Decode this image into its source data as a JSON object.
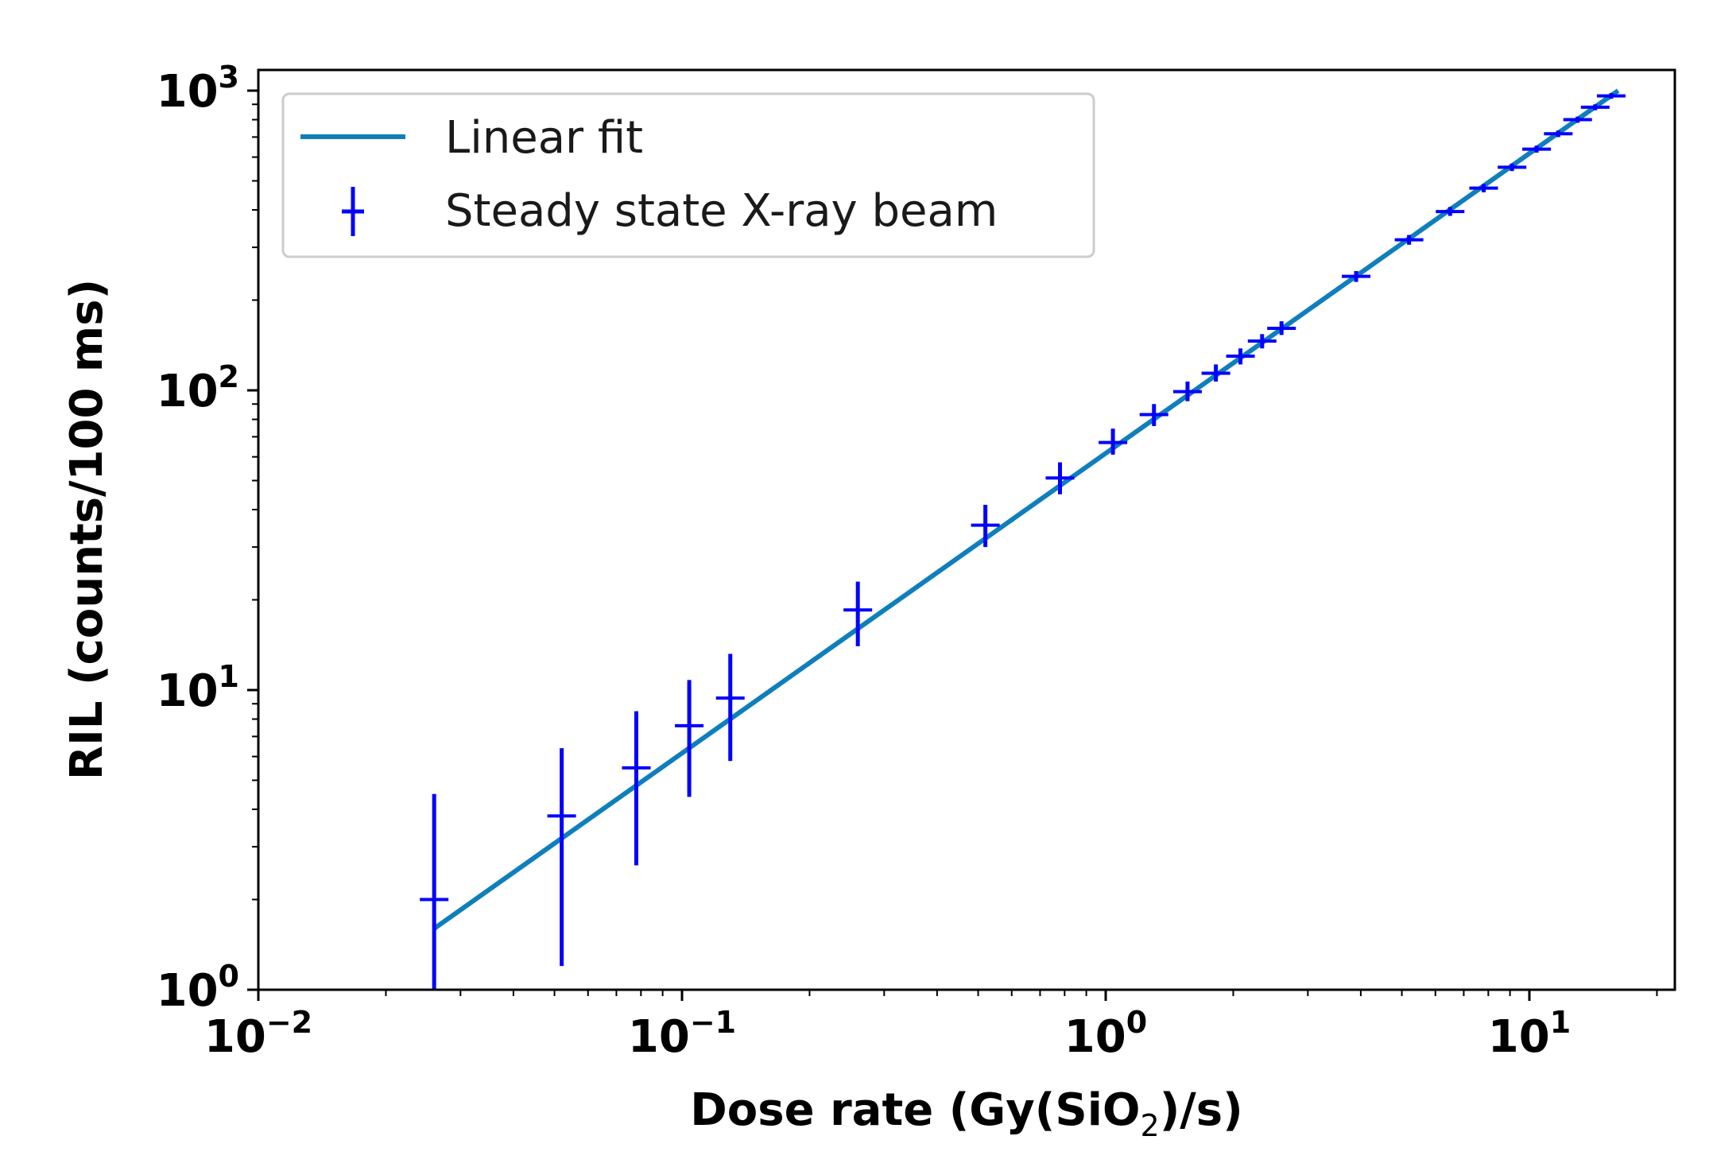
{
  "chart_data": {
    "type": "scatter",
    "xscale": "log",
    "yscale": "log",
    "xlabel": {
      "prefix": "Dose rate (Gy(SiO",
      "sub": "2",
      "suffix": ")/s)"
    },
    "ylabel": "RIL (counts/100 ms)",
    "xlim": [
      0.01,
      22
    ],
    "ylim": [
      1,
      1100
    ],
    "xticks": [
      {
        "base": "10",
        "exp": "−2",
        "value": 0.01
      },
      {
        "base": "10",
        "exp": "−1",
        "value": 0.1
      },
      {
        "base": "10",
        "exp": "0",
        "value": 1
      },
      {
        "base": "10",
        "exp": "1",
        "value": 10
      }
    ],
    "yticks": [
      {
        "base": "10",
        "exp": "0",
        "value": 1
      },
      {
        "base": "10",
        "exp": "1",
        "value": 10
      },
      {
        "base": "10",
        "exp": "2",
        "value": 100
      },
      {
        "base": "10",
        "exp": "3",
        "value": 1000
      }
    ],
    "legend_position": "top-left",
    "series": [
      {
        "name": "Linear fit",
        "kind": "line",
        "color": "#0f7fbc",
        "x": [
          0.026,
          16.2
        ],
        "y": [
          1.6,
          1000
        ]
      },
      {
        "name": "Steady state X-ray beam",
        "kind": "errorbar",
        "color": "#0000ff",
        "points": [
          {
            "x": 0.026,
            "y": 2.0,
            "ylow": 1.0,
            "yhigh": 4.5
          },
          {
            "x": 0.052,
            "y": 3.8,
            "ylow": 1.2,
            "yhigh": 6.4
          },
          {
            "x": 0.078,
            "y": 5.5,
            "ylow": 2.6,
            "yhigh": 8.5
          },
          {
            "x": 0.104,
            "y": 7.6,
            "ylow": 4.4,
            "yhigh": 10.8
          },
          {
            "x": 0.13,
            "y": 9.4,
            "ylow": 5.8,
            "yhigh": 13.2
          },
          {
            "x": 0.26,
            "y": 18.5,
            "ylow": 14.0,
            "yhigh": 23.0
          },
          {
            "x": 0.52,
            "y": 35.5,
            "ylow": 30.0,
            "yhigh": 41.5
          },
          {
            "x": 0.78,
            "y": 51.0,
            "ylow": 45.0,
            "yhigh": 57.5
          },
          {
            "x": 1.04,
            "y": 67.0,
            "ylow": 61.0,
            "yhigh": 74.5
          },
          {
            "x": 1.3,
            "y": 83.0,
            "ylow": 76.0,
            "yhigh": 90.0
          },
          {
            "x": 1.56,
            "y": 99.0,
            "ylow": 92.0,
            "yhigh": 107.0
          },
          {
            "x": 1.82,
            "y": 114.0,
            "ylow": 107.0,
            "yhigh": 122.0
          },
          {
            "x": 2.08,
            "y": 130.0,
            "ylow": 122.0,
            "yhigh": 138.0
          },
          {
            "x": 2.34,
            "y": 146.0,
            "ylow": 138.0,
            "yhigh": 154.0
          },
          {
            "x": 2.6,
            "y": 161.0,
            "ylow": 153.0,
            "yhigh": 170.0
          },
          {
            "x": 3.9,
            "y": 240.0,
            "ylow": 230.0,
            "yhigh": 250.0
          },
          {
            "x": 5.2,
            "y": 318.0,
            "ylow": 306.0,
            "yhigh": 330.0
          },
          {
            "x": 6.5,
            "y": 395.0,
            "ylow": 382.0,
            "yhigh": 409.0
          },
          {
            "x": 7.8,
            "y": 473.0,
            "ylow": 458.0,
            "yhigh": 488.0
          },
          {
            "x": 9.1,
            "y": 555.0,
            "ylow": 539.0,
            "yhigh": 571.0
          },
          {
            "x": 10.4,
            "y": 638.0,
            "ylow": 621.0,
            "yhigh": 655.0
          },
          {
            "x": 11.7,
            "y": 718.0,
            "ylow": 700.0,
            "yhigh": 736.0
          },
          {
            "x": 13.0,
            "y": 800.0,
            "ylow": 781.0,
            "yhigh": 819.0
          },
          {
            "x": 14.3,
            "y": 880.0,
            "ylow": 860.0,
            "yhigh": 900.0
          },
          {
            "x": 15.6,
            "y": 960.0,
            "ylow": 939.0,
            "yhigh": 981.0
          }
        ]
      }
    ]
  },
  "legend": {
    "items": [
      {
        "label": "Linear fit"
      },
      {
        "label": "Steady state X-ray beam"
      }
    ]
  }
}
